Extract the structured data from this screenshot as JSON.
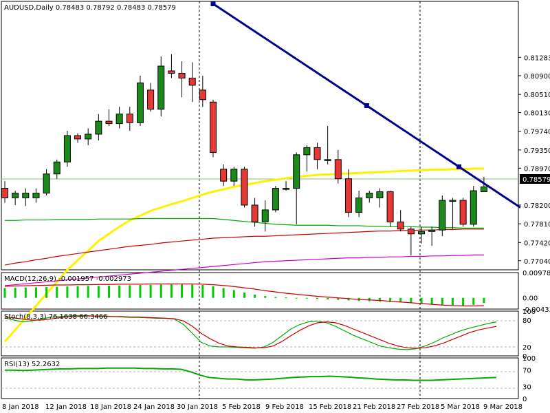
{
  "chart_data": [
    {
      "type": "candlestick",
      "title": "AUDUSD,Daily  0.78483 0.78792 0.78483 0.78579",
      "symbol": "AUDUSD,Daily",
      "ylim": [
        0.7685,
        0.8245
      ],
      "y_ticks": [
        "0.81283",
        "0.80900",
        "0.80510",
        "0.80130",
        "0.79740",
        "0.79350",
        "0.78970",
        "0.78579",
        "0.78200",
        "0.77810",
        "0.77420",
        "0.77040"
      ],
      "current_price": "0.78579",
      "x_ticks": [
        "8 Jan 2018",
        "12 Jan 2018",
        "18 Jan 2018",
        "24 Jan 2018",
        "30 Jan 2018",
        "5 Feb 2018",
        "9 Feb 2018",
        "15 Feb 2018",
        "21 Feb 2018",
        "27 Feb 2018",
        "5 Mar 2018",
        "9 Mar 2018"
      ],
      "candles": [
        {
          "o": 0.7855,
          "h": 0.787,
          "l": 0.7825,
          "c": 0.7835
        },
        {
          "o": 0.7835,
          "h": 0.785,
          "l": 0.782,
          "c": 0.7845
        },
        {
          "o": 0.7835,
          "h": 0.7855,
          "l": 0.7818,
          "c": 0.7845
        },
        {
          "o": 0.7835,
          "h": 0.7855,
          "l": 0.7825,
          "c": 0.7845
        },
        {
          "o": 0.7845,
          "h": 0.7895,
          "l": 0.784,
          "c": 0.7885
        },
        {
          "o": 0.7885,
          "h": 0.7915,
          "l": 0.7875,
          "c": 0.791
        },
        {
          "o": 0.791,
          "h": 0.7975,
          "l": 0.79,
          "c": 0.7965
        },
        {
          "o": 0.7965,
          "h": 0.797,
          "l": 0.795,
          "c": 0.7958
        },
        {
          "o": 0.7958,
          "h": 0.798,
          "l": 0.7945,
          "c": 0.7968
        },
        {
          "o": 0.7968,
          "h": 0.801,
          "l": 0.7955,
          "c": 0.7995
        },
        {
          "o": 0.7995,
          "h": 0.802,
          "l": 0.7985,
          "c": 0.799
        },
        {
          "o": 0.799,
          "h": 0.8025,
          "l": 0.798,
          "c": 0.801
        },
        {
          "o": 0.801,
          "h": 0.8025,
          "l": 0.7975,
          "c": 0.7992
        },
        {
          "o": 0.7992,
          "h": 0.809,
          "l": 0.7985,
          "c": 0.8075
        },
        {
          "o": 0.806,
          "h": 0.8075,
          "l": 0.8015,
          "c": 0.802
        },
        {
          "o": 0.802,
          "h": 0.813,
          "l": 0.8005,
          "c": 0.811
        },
        {
          "o": 0.81,
          "h": 0.8135,
          "l": 0.8085,
          "c": 0.8095
        },
        {
          "o": 0.8095,
          "h": 0.812,
          "l": 0.8045,
          "c": 0.8085
        },
        {
          "o": 0.8085,
          "h": 0.8118,
          "l": 0.8035,
          "c": 0.807
        },
        {
          "o": 0.806,
          "h": 0.809,
          "l": 0.8025,
          "c": 0.804
        },
        {
          "o": 0.8035,
          "h": 0.804,
          "l": 0.792,
          "c": 0.793
        },
        {
          "o": 0.7895,
          "h": 0.7905,
          "l": 0.786,
          "c": 0.787
        },
        {
          "o": 0.787,
          "h": 0.79,
          "l": 0.786,
          "c": 0.7895
        },
        {
          "o": 0.7895,
          "h": 0.79,
          "l": 0.7815,
          "c": 0.782
        },
        {
          "o": 0.782,
          "h": 0.7835,
          "l": 0.7775,
          "c": 0.7785
        },
        {
          "o": 0.7785,
          "h": 0.783,
          "l": 0.7765,
          "c": 0.781
        },
        {
          "o": 0.781,
          "h": 0.786,
          "l": 0.7805,
          "c": 0.7855
        },
        {
          "o": 0.7855,
          "h": 0.787,
          "l": 0.785,
          "c": 0.7855
        },
        {
          "o": 0.7855,
          "h": 0.793,
          "l": 0.778,
          "c": 0.7925
        },
        {
          "o": 0.7925,
          "h": 0.7945,
          "l": 0.789,
          "c": 0.794
        },
        {
          "o": 0.794,
          "h": 0.795,
          "l": 0.7895,
          "c": 0.7915
        },
        {
          "o": 0.7915,
          "h": 0.7985,
          "l": 0.7905,
          "c": 0.7915
        },
        {
          "o": 0.7915,
          "h": 0.7935,
          "l": 0.7865,
          "c": 0.7875
        },
        {
          "o": 0.7875,
          "h": 0.7895,
          "l": 0.7795,
          "c": 0.7805
        },
        {
          "o": 0.7805,
          "h": 0.785,
          "l": 0.7795,
          "c": 0.7835
        },
        {
          "o": 0.7835,
          "h": 0.785,
          "l": 0.7825,
          "c": 0.7845
        },
        {
          "o": 0.7835,
          "h": 0.7855,
          "l": 0.7815,
          "c": 0.7848
        },
        {
          "o": 0.7848,
          "h": 0.785,
          "l": 0.7775,
          "c": 0.7785
        },
        {
          "o": 0.7785,
          "h": 0.781,
          "l": 0.7765,
          "c": 0.777
        },
        {
          "o": 0.777,
          "h": 0.7775,
          "l": 0.7715,
          "c": 0.776
        },
        {
          "o": 0.776,
          "h": 0.7775,
          "l": 0.774,
          "c": 0.7765
        },
        {
          "o": 0.7765,
          "h": 0.7775,
          "l": 0.7735,
          "c": 0.7768
        },
        {
          "o": 0.7768,
          "h": 0.784,
          "l": 0.7755,
          "c": 0.783
        },
        {
          "o": 0.783,
          "h": 0.7835,
          "l": 0.777,
          "c": 0.783
        },
        {
          "o": 0.783,
          "h": 0.7835,
          "l": 0.7775,
          "c": 0.778
        },
        {
          "o": 0.778,
          "h": 0.786,
          "l": 0.7775,
          "c": 0.785
        },
        {
          "o": 0.7848,
          "h": 0.7879,
          "l": 0.7848,
          "c": 0.7858
        }
      ],
      "trendline": {
        "start": {
          "index": 20,
          "value": 0.824
        },
        "end": {
          "index": 49.5,
          "value": 0.7815
        }
      },
      "moving_averages": [
        {
          "color": "#FFF200",
          "values": [
            0.7535,
            0.756,
            0.7585,
            0.761,
            0.7635,
            0.766,
            0.7685,
            0.7705,
            0.7725,
            0.7745,
            0.776,
            0.7775,
            0.7788,
            0.7798,
            0.7808,
            0.7815,
            0.7822,
            0.7828,
            0.7835,
            0.7842,
            0.7848,
            0.7853,
            0.7858,
            0.7862,
            0.7866,
            0.787,
            0.7873,
            0.7876,
            0.7879,
            0.7881,
            0.7883,
            0.7884,
            0.7885,
            0.7886,
            0.7887,
            0.7888,
            0.7889,
            0.789,
            0.7891,
            0.7892,
            0.7893,
            0.7894,
            0.7894,
            0.7895,
            0.7895,
            0.7896,
            0.7896
          ]
        },
        {
          "color": "#00AA00",
          "values": [
            0.7788,
            0.7788,
            0.7789,
            0.7789,
            0.7789,
            0.779,
            0.779,
            0.779,
            0.779,
            0.7791,
            0.7791,
            0.7791,
            0.7791,
            0.7792,
            0.7792,
            0.7792,
            0.7792,
            0.7792,
            0.7792,
            0.7792,
            0.7792,
            0.779,
            0.7788,
            0.7786,
            0.7784,
            0.7782,
            0.778,
            0.7779,
            0.7778,
            0.7778,
            0.7778,
            0.7778,
            0.7777,
            0.7777,
            0.7777,
            0.7776,
            0.7776,
            0.7775,
            0.7775,
            0.7775,
            0.7774,
            0.7774,
            0.7773,
            0.7773,
            0.7772,
            0.7772,
            0.7772
          ]
        },
        {
          "color": "#CC0000",
          "values": [
            0.7695,
            0.7699,
            0.7702,
            0.7706,
            0.7709,
            0.7713,
            0.7716,
            0.7719,
            0.7722,
            0.7725,
            0.7728,
            0.7731,
            0.7734,
            0.7736,
            0.7738,
            0.7741,
            0.7743,
            0.7745,
            0.7747,
            0.7749,
            0.7751,
            0.7752,
            0.7753,
            0.7754,
            0.7755,
            0.7755,
            0.7756,
            0.7757,
            0.7758,
            0.7759,
            0.776,
            0.7761,
            0.7762,
            0.7763,
            0.7764,
            0.7765,
            0.7766,
            0.7766,
            0.7767,
            0.7767,
            0.7768,
            0.7768,
            0.7769,
            0.7769,
            0.777,
            0.777,
            0.777
          ]
        },
        {
          "color": "#CC00CC",
          "values": [
            0.7652,
            0.7654,
            0.7656,
            0.7658,
            0.766,
            0.7662,
            0.7664,
            0.7666,
            0.7668,
            0.767,
            0.7672,
            0.7674,
            0.7676,
            0.7678,
            0.768,
            0.7682,
            0.7684,
            0.7686,
            0.7688,
            0.769,
            0.7692,
            0.7694,
            0.7696,
            0.7698,
            0.77,
            0.7702,
            0.7703,
            0.7704,
            0.7705,
            0.7706,
            0.7707,
            0.7708,
            0.7709,
            0.771,
            0.771,
            0.7711,
            0.7711,
            0.7712,
            0.7712,
            0.7713,
            0.7713,
            0.7714,
            0.7714,
            0.7715,
            0.7715,
            0.7716,
            0.7716
          ]
        }
      ]
    },
    {
      "type": "bar",
      "title": "MACD(12,26,9) -0.001957 -0.002973",
      "ylim": [
        -0.00433,
        0.009789
      ],
      "y_ticks": [
        "0.009789",
        "0.00",
        "-0.004333"
      ],
      "histogram": [
        0.0038,
        0.0039,
        0.004,
        0.0041,
        0.0042,
        0.0043,
        0.0044,
        0.0045,
        0.0046,
        0.0046,
        0.0047,
        0.0048,
        0.0049,
        0.005,
        0.0051,
        0.0052,
        0.0053,
        0.0053,
        0.0052,
        0.005,
        0.0045,
        0.0038,
        0.003,
        0.0021,
        0.0013,
        0.0007,
        0.0004,
        0.0002,
        0.0,
        -0.0002,
        -0.0004,
        -0.0006,
        -0.0008,
        -0.001,
        -0.0012,
        -0.0013,
        -0.0014,
        -0.0016,
        -0.0018,
        -0.002,
        -0.0022,
        -0.0025,
        -0.0027,
        -0.0028,
        -0.0029,
        -0.0027,
        -0.002
      ],
      "signal": [
        0.0045,
        0.0046,
        0.0047,
        0.0048,
        0.0049,
        0.005,
        0.005,
        0.0051,
        0.0051,
        0.0052,
        0.0052,
        0.0053,
        0.0053,
        0.0053,
        0.0054,
        0.0054,
        0.0054,
        0.0054,
        0.0054,
        0.0053,
        0.0051,
        0.0048,
        0.0044,
        0.0039,
        0.0034,
        0.0028,
        0.0023,
        0.0018,
        0.0014,
        0.001,
        0.0006,
        0.0003,
        0.0,
        -0.0003,
        -0.0006,
        -0.0008,
        -0.001,
        -0.0013,
        -0.0016,
        -0.0019,
        -0.0022,
        -0.0025,
        -0.0028,
        -0.003,
        -0.0031,
        -0.0031,
        -0.003
      ]
    },
    {
      "type": "line",
      "title": "Stoch(8,3,3) 76.1638 66.3466",
      "ylim": [
        0,
        100
      ],
      "y_ticks": [
        "100",
        "80",
        "20",
        "0"
      ],
      "series": [
        {
          "color": "#00AA00",
          "values": [
            85,
            80,
            76,
            78,
            82,
            86,
            88,
            89,
            90,
            90,
            89,
            88,
            88,
            87,
            86,
            86,
            85,
            84,
            84,
            82,
            70,
            50,
            30,
            22,
            20,
            20,
            19,
            18,
            17,
            20,
            30,
            45,
            60,
            70,
            76,
            78,
            74,
            66,
            56,
            46,
            38,
            30,
            22,
            18,
            15,
            14,
            16,
            22,
            30,
            40,
            48,
            56,
            62,
            67,
            72,
            76
          ]
        },
        {
          "color": "#CC0000",
          "values": [
            87,
            85,
            82,
            80,
            80,
            82,
            85,
            87,
            88,
            89,
            89,
            89,
            88,
            88,
            87,
            87,
            86,
            85,
            84,
            83,
            78,
            66,
            50,
            38,
            28,
            22,
            20,
            19,
            18,
            18,
            22,
            32,
            45,
            57,
            67,
            74,
            76,
            74,
            68,
            60,
            52,
            44,
            36,
            28,
            22,
            18,
            17,
            18,
            22,
            28,
            36,
            44,
            52,
            58,
            62,
            66
          ]
        }
      ]
    },
    {
      "type": "line",
      "title": "RSI(13) 52.2632",
      "ylim": [
        0,
        100
      ],
      "y_ticks": [
        "100",
        "70",
        "30",
        "0"
      ],
      "series": [
        {
          "color": "#00AA00",
          "values": [
            70,
            70,
            69,
            70,
            71,
            72,
            73,
            73,
            74,
            74,
            74,
            75,
            75,
            75,
            75,
            74,
            74,
            73,
            73,
            72,
            66,
            58,
            52,
            50,
            48,
            48,
            46,
            46,
            47,
            48,
            50,
            52,
            53,
            54,
            54,
            55,
            54,
            53,
            51,
            50,
            48,
            47,
            46,
            46,
            45,
            45,
            45,
            46,
            47,
            48,
            49,
            50,
            51,
            52
          ]
        }
      ]
    }
  ]
}
